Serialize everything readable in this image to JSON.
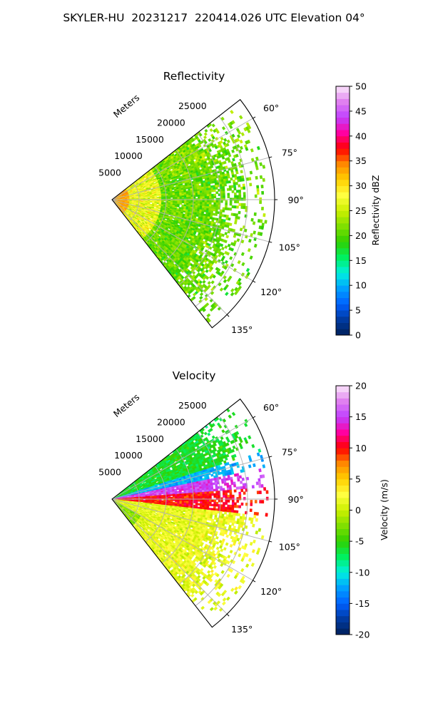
{
  "figure": {
    "title": "SKYLER-HU  20231217  220414.026 UTC Elevation 04°"
  },
  "chart_data": [
    {
      "type": "heatmap",
      "subtype": "polar-sector-ppi",
      "title": "Reflectivity",
      "range_axis": {
        "label": "Meters",
        "ticks": [
          "5000",
          "10000",
          "15000",
          "20000",
          "25000"
        ],
        "range": [
          0,
          30000
        ]
      },
      "angle_axis": {
        "ticks": [
          "60°",
          "75°",
          "90°",
          "105°",
          "120°",
          "135°"
        ],
        "range_deg": [
          52,
          142
        ]
      },
      "grid": true,
      "colorbar": {
        "label": "Reflectivity dBZ",
        "ticks": [
          "0",
          "5",
          "10",
          "15",
          "20",
          "25",
          "30",
          "35",
          "40",
          "45",
          "50"
        ],
        "range": [
          0,
          50
        ],
        "colors": [
          "#00205a",
          "#003aa0",
          "#0060ff",
          "#00a0ff",
          "#00f0e0",
          "#00f060",
          "#30d000",
          "#80e000",
          "#ccf000",
          "#ffff40",
          "#ffd000",
          "#ff8800",
          "#ff0000",
          "#ff00a0",
          "#c040ff",
          "#e080f0",
          "#fbe8fb"
        ]
      },
      "field": {
        "description": "mostly 18-28 dBZ (yellow-green); 30-38 dBZ (orange/red) near the radar; sparse speckle beyond ~20000 m",
        "dominant_dbz": [
          18,
          28
        ],
        "near_range_dbz": [
          30,
          38
        ],
        "max_extent_m": 28000
      }
    },
    {
      "type": "heatmap",
      "subtype": "polar-sector-ppi",
      "title": "Velocity",
      "range_axis": {
        "label": "Meters",
        "ticks": [
          "5000",
          "10000",
          "15000",
          "20000",
          "25000"
        ],
        "range": [
          0,
          30000
        ]
      },
      "angle_axis": {
        "ticks": [
          "60°",
          "75°",
          "90°",
          "105°",
          "120°",
          "135°"
        ],
        "range_deg": [
          52,
          142
        ]
      },
      "grid": true,
      "colorbar": {
        "label": "Velocity (m/s)",
        "ticks": [
          "-20",
          "-15",
          "-10",
          "-5",
          "0",
          "5",
          "10",
          "15",
          "20"
        ],
        "range": [
          -20,
          20
        ],
        "colors": [
          "#00205a",
          "#003aa0",
          "#0060ff",
          "#00a0ff",
          "#00f0e0",
          "#00f060",
          "#30d000",
          "#80e000",
          "#ccf000",
          "#ffff40",
          "#ffd000",
          "#ff8800",
          "#ff0000",
          "#ff00a0",
          "#c040ff",
          "#e080f0",
          "#fbe8fb"
        ]
      },
      "field": {
        "description": "green (-5 to -8 m/s) toward 55-70°, cyan (-12) near 75°, magenta (+15) near 80-85°, red (+10) near 88-95°, yellow (0 to +2) for 100-140°",
        "sectors": [
          {
            "from_deg": 52,
            "to_deg": 72,
            "velocity": -6
          },
          {
            "from_deg": 72,
            "to_deg": 79,
            "velocity": -12
          },
          {
            "from_deg": 79,
            "to_deg": 86,
            "velocity": 15
          },
          {
            "from_deg": 86,
            "to_deg": 96,
            "velocity": 10
          },
          {
            "from_deg": 96,
            "to_deg": 142,
            "velocity": 1
          }
        ]
      }
    }
  ]
}
